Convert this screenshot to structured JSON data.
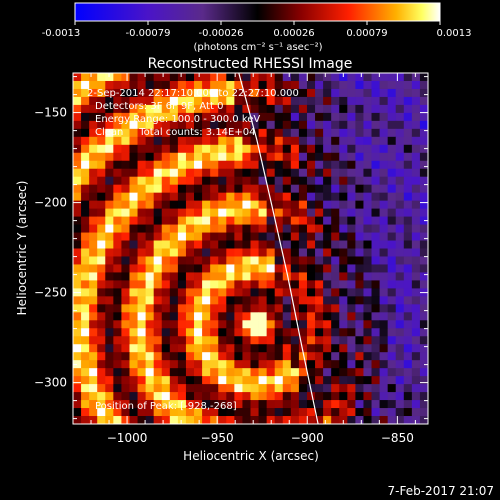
{
  "colorbar": {
    "tick_labels": [
      "-0.0013",
      "-0.00079",
      "-0.00026",
      "0.00026",
      "0.00079",
      "0.0013"
    ],
    "units_label": "(photons cm⁻² s⁻¹ asec⁻²)",
    "min": -0.0013,
    "max": 0.0013
  },
  "chart_data": {
    "type": "heatmap",
    "title": "Reconstructed RHESSI Image",
    "xlabel": "Heliocentric X (arcsec)",
    "ylabel": "Heliocentric Y (arcsec)",
    "xlim": [
      -1030,
      -833
    ],
    "ylim": [
      -323,
      -128
    ],
    "x_ticks": [
      -1000,
      -950,
      -900,
      -850
    ],
    "x_tick_labels": [
      "−1000",
      "−950",
      "−900",
      "−850"
    ],
    "y_ticks": [
      -150,
      -200,
      -250,
      -300
    ],
    "y_tick_labels": [
      "−150",
      "−200",
      "−250",
      "−300"
    ],
    "annotations": [
      "2-Sep-2014 22:17:10.000 to 22:27:10.000",
      "Detectors: 3F 6F 9F, Att 0",
      "Energy Range: 100.0 - 300.0 keV",
      "Clean     Total counts: 3.14E+04"
    ],
    "peak_label": "Position of Peak: [-928,-268]",
    "peak": [
      -928,
      -268
    ],
    "limb_curve": [
      [
        -938,
        -128
      ],
      [
        -928,
        -165
      ],
      [
        -920,
        -200
      ],
      [
        -911,
        -240
      ],
      [
        -903,
        -280
      ],
      [
        -894,
        -323
      ]
    ],
    "colormap": "rhessi-blue-red-yellow-white"
  },
  "footer": {
    "timestamp": "7-Feb-2017 21:07"
  },
  "colors": {
    "background": "#000000",
    "text": "#ffffff",
    "limb": "#ffffff"
  }
}
